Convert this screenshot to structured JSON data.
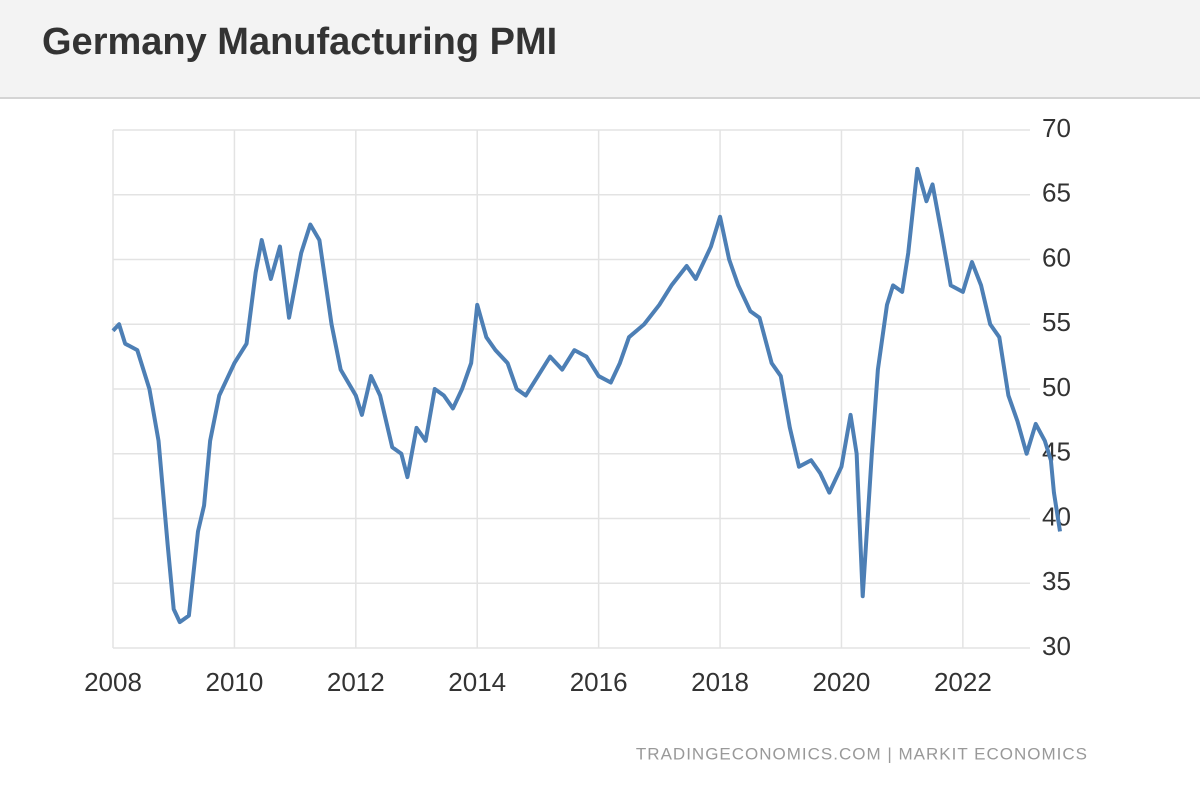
{
  "chart_data": {
    "type": "line",
    "title": "Germany Manufacturing PMI",
    "source": "TRADINGECONOMICS.COM  |  MARKIT ECONOMICS",
    "x": [
      2008.0,
      2008.1,
      2008.2,
      2008.4,
      2008.6,
      2008.75,
      2008.9,
      2009.0,
      2009.1,
      2009.25,
      2009.4,
      2009.5,
      2009.6,
      2009.75,
      2010.0,
      2010.2,
      2010.35,
      2010.45,
      2010.6,
      2010.75,
      2010.9,
      2011.1,
      2011.25,
      2011.4,
      2011.6,
      2011.75,
      2012.0,
      2012.1,
      2012.25,
      2012.4,
      2012.6,
      2012.75,
      2012.85,
      2013.0,
      2013.15,
      2013.3,
      2013.45,
      2013.6,
      2013.75,
      2013.9,
      2014.0,
      2014.15,
      2014.3,
      2014.5,
      2014.65,
      2014.8,
      2015.0,
      2015.2,
      2015.4,
      2015.6,
      2015.8,
      2016.0,
      2016.2,
      2016.35,
      2016.5,
      2016.75,
      2017.0,
      2017.2,
      2017.45,
      2017.6,
      2017.85,
      2018.0,
      2018.15,
      2018.3,
      2018.5,
      2018.65,
      2018.85,
      2019.0,
      2019.15,
      2019.3,
      2019.5,
      2019.65,
      2019.8,
      2020.0,
      2020.15,
      2020.25,
      2020.35,
      2020.5,
      2020.6,
      2020.75,
      2020.85,
      2021.0,
      2021.1,
      2021.25,
      2021.4,
      2021.5,
      2021.65,
      2021.8,
      2022.0,
      2022.15,
      2022.3,
      2022.45,
      2022.6,
      2022.75,
      2022.9,
      2023.05,
      2023.2,
      2023.35,
      2023.45,
      2023.5,
      2023.6
    ],
    "series": [
      {
        "name": "Germany Manufacturing PMI",
        "color": "#4d7fb5",
        "values": [
          54.5,
          55,
          53.5,
          53,
          50,
          46,
          38,
          33,
          32,
          32.5,
          39,
          41,
          46,
          49.5,
          52,
          53.5,
          59,
          61.5,
          58.5,
          61,
          55.5,
          60.5,
          62.7,
          61.5,
          55,
          51.5,
          49.5,
          48,
          51,
          49.5,
          45.5,
          45,
          43.2,
          47,
          46,
          50,
          49.5,
          48.5,
          50,
          52,
          56.5,
          54,
          53,
          52,
          50,
          49.5,
          51,
          52.5,
          51.5,
          53,
          52.5,
          51,
          50.5,
          52,
          54,
          55,
          56.5,
          58,
          59.5,
          58.5,
          61,
          63.3,
          60,
          58,
          56,
          55.5,
          52,
          51,
          47,
          44,
          44.5,
          43.5,
          42,
          44,
          48,
          45,
          34,
          45,
          51.5,
          56.5,
          58,
          57.5,
          60.5,
          67,
          64.5,
          65.8,
          62,
          58,
          57.5,
          59.8,
          58,
          55,
          54,
          49.5,
          47.5,
          45,
          47.3,
          46,
          44.5,
          42,
          39
        ]
      }
    ],
    "xlim": [
      2008,
      2023.6
    ],
    "xticks": [
      2008,
      2010,
      2012,
      2014,
      2016,
      2018,
      2020,
      2022
    ],
    "ylim": [
      30,
      70
    ],
    "yticks": [
      30,
      35,
      40,
      45,
      50,
      55,
      60,
      65,
      70
    ],
    "grid": true
  }
}
